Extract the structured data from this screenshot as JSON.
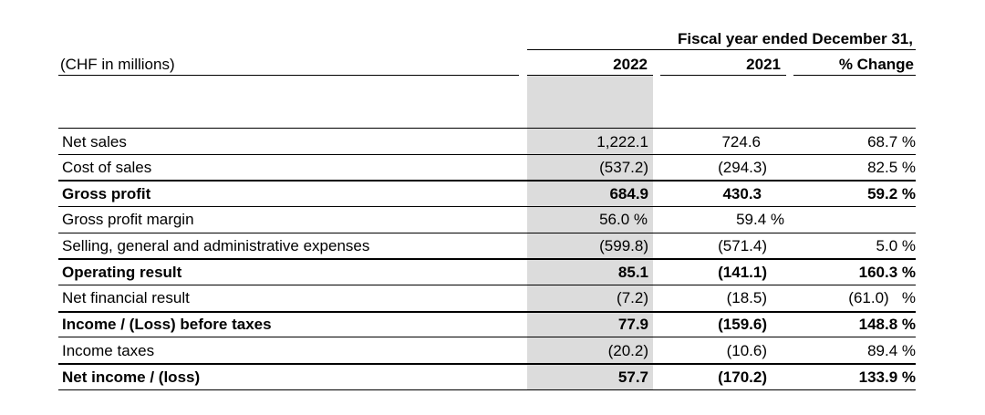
{
  "header": {
    "period_title": "Fiscal year ended December 31,",
    "unit_label": "(CHF in millions)",
    "col_2022": "2022",
    "col_2021": "2021",
    "col_change": "% Change"
  },
  "rows": [
    {
      "label": "Net sales",
      "v2022": "1,222.1",
      "v2021": "724.6",
      "change": "68.7 %",
      "bold": false
    },
    {
      "label": "Cost of sales",
      "v2022": "(537.2)",
      "v2021": "(294.3)",
      "change": "82.5 %",
      "bold": false
    },
    {
      "label": "Gross profit",
      "v2022": "684.9",
      "v2021": "430.3",
      "change": "59.2 %",
      "bold": true
    },
    {
      "label": "Gross profit margin",
      "v2022": "56.0 %",
      "v2021": "59.4 %",
      "change": "",
      "bold": false
    },
    {
      "label": "Selling, general and administrative expenses",
      "v2022": "(599.8)",
      "v2021": "(571.4)",
      "change": "5.0 %",
      "bold": false
    },
    {
      "label": "Operating result",
      "v2022": "85.1",
      "v2021": "(141.1)",
      "change": "160.3 %",
      "bold": true
    },
    {
      "label": "Net financial result",
      "v2022": "(7.2)",
      "v2021": "(18.5)",
      "change": "(61.0)   %",
      "bold": false
    },
    {
      "label": "Income / (Loss) before taxes",
      "v2022": "77.9",
      "v2021": "(159.6)",
      "change": "148.8 %",
      "bold": true
    },
    {
      "label": "Income taxes",
      "v2022": "(20.2)",
      "v2021": "(10.6)",
      "change": "89.4 %",
      "bold": false
    },
    {
      "label": "Net income / (loss)",
      "v2022": "57.7",
      "v2021": "(170.2)",
      "change": "133.9 %",
      "bold": true
    }
  ]
}
